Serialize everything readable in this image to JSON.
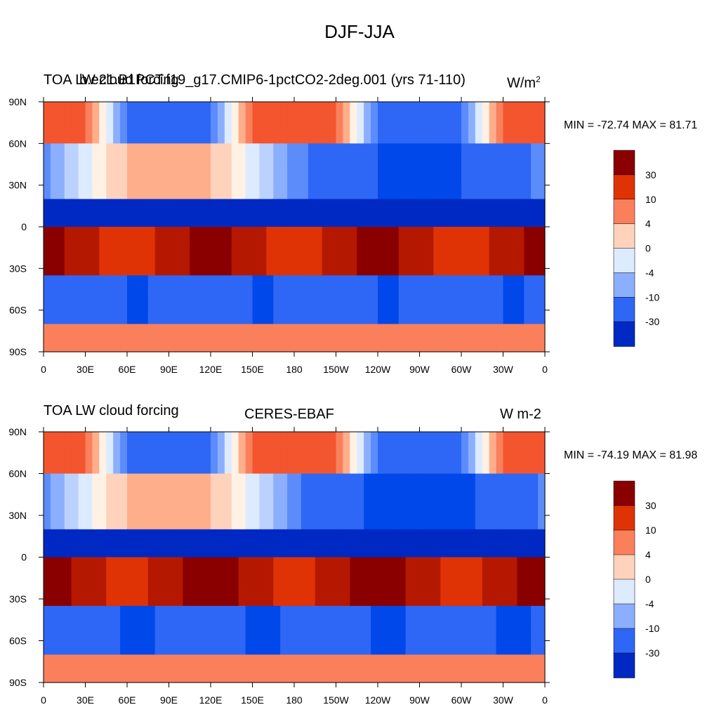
{
  "title": "DJF-JJA",
  "colors": {
    "levels_palette": [
      "#000093",
      "#0029c4",
      "#0048ea",
      "#2e67f5",
      "#5c8cfa",
      "#8caffd",
      "#bcd2fe",
      "#ddebff",
      "#fff2e5",
      "#ffd2bc",
      "#ffae8c",
      "#fa805c",
      "#f3552e",
      "#df3306",
      "#b51800",
      "#8a0000"
    ]
  },
  "chart_data": [
    {
      "type": "heatmap",
      "name": "model",
      "left_title": "TOA LW cloud forcing",
      "center_title": "b.e21.B1PCT.f19_g17.CMIP6-1pctCO2-2deg.001 (yrs 71-110)",
      "units": "W/m",
      "units_sup": "2",
      "min_max": "MIN = -72.74 MAX =  81.71",
      "min": -72.74,
      "max": 81.71,
      "x_ticks": [
        "0",
        "30E",
        "60E",
        "90E",
        "120E",
        "150E",
        "180",
        "150W",
        "120W",
        "90W",
        "60W",
        "30W",
        "0"
      ],
      "y_ticks": [
        "90N",
        "60N",
        "30N",
        "0",
        "30S",
        "60S",
        "90S"
      ],
      "colorbar_labels": [
        "30",
        "10",
        "4",
        "0",
        "-4",
        "-10",
        "-30"
      ],
      "levels": [
        -50,
        -40,
        -30,
        -20,
        -10,
        -7,
        -4,
        -2,
        0,
        2,
        4,
        7,
        10,
        20,
        30,
        40,
        50
      ]
    },
    {
      "type": "heatmap",
      "name": "obs",
      "left_title": "TOA LW cloud forcing",
      "center_title": "CERES-EBAF",
      "units": "W m-2",
      "units_sup": "",
      "min_max": "MIN = -74.19 MAX =  81.98",
      "min": -74.19,
      "max": 81.98,
      "x_ticks": [
        "0",
        "30E",
        "60E",
        "90E",
        "120E",
        "150E",
        "180",
        "150W",
        "120W",
        "90W",
        "60W",
        "30W",
        "0"
      ],
      "y_ticks": [
        "90N",
        "60N",
        "30N",
        "0",
        "30S",
        "60S",
        "90S"
      ],
      "colorbar_labels": [
        "30",
        "10",
        "4",
        "0",
        "-4",
        "-10",
        "-30"
      ],
      "levels": [
        -50,
        -40,
        -30,
        -20,
        -10,
        -7,
        -4,
        -2,
        0,
        2,
        4,
        7,
        10,
        20,
        30,
        40,
        50
      ]
    }
  ]
}
